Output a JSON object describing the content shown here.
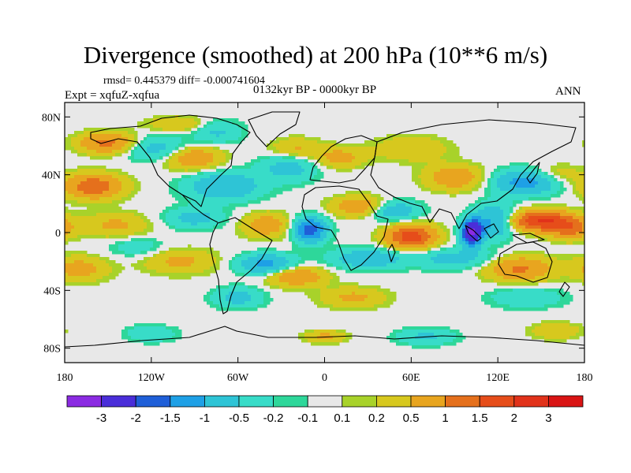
{
  "chart_data": {
    "type": "heatmap",
    "title": "Divergence (smoothed) at 200 hPa (10**6 m/s)",
    "stats_text": "rmsd= 0.445379 diff= -0.000741604",
    "experiment_text": "Expt = xqfuZ-xqfua",
    "period_text": "0132kyr BP - 0000kyr BP",
    "season_text": "ANN",
    "x_axis": {
      "range": [
        -180,
        180
      ],
      "ticks": [
        -180,
        -120,
        -60,
        0,
        60,
        120,
        180
      ],
      "tick_labels": [
        "180",
        "120W",
        "60W",
        "0",
        "60E",
        "120E",
        "180"
      ]
    },
    "y_axis": {
      "range": [
        -90,
        90
      ],
      "ticks": [
        80,
        40,
        0,
        -40,
        -80
      ],
      "tick_labels": [
        "80N",
        "40N",
        "0",
        "40S",
        "80S"
      ]
    },
    "colorbar": {
      "labels": [
        "-3",
        "-2",
        "-1.5",
        "-1",
        "-0.5",
        "-0.2",
        "-0.1",
        "0.1",
        "0.2",
        "0.5",
        "1",
        "1.5",
        "2",
        "3"
      ],
      "colors": [
        "#8b2be2",
        "#4a2ed9",
        "#1f5fd8",
        "#1ea0e6",
        "#2ec4d6",
        "#38dcc8",
        "#2ed79a",
        "#e8e8e8",
        "#a8d22a",
        "#d7c81e",
        "#e8a51f",
        "#e5701c",
        "#e64d1a",
        "#e1321a",
        "#d91414"
      ]
    },
    "anomalies": [
      {
        "lon": -150,
        "lat": 62,
        "v": 1.2,
        "sx": 14,
        "sy": 5
      },
      {
        "lon": -115,
        "lat": 58,
        "v": -0.8,
        "sx": 16,
        "sy": 6
      },
      {
        "lon": -92,
        "lat": 52,
        "v": 1.0,
        "sx": 14,
        "sy": 6
      },
      {
        "lon": -75,
        "lat": 70,
        "v": -0.6,
        "sx": 12,
        "sy": 6
      },
      {
        "lon": -160,
        "lat": 32,
        "v": 1.4,
        "sx": 14,
        "sy": 6
      },
      {
        "lon": -70,
        "lat": 32,
        "v": -1.0,
        "sx": 18,
        "sy": 7
      },
      {
        "lon": -25,
        "lat": 45,
        "v": -0.7,
        "sx": 14,
        "sy": 7
      },
      {
        "lon": -20,
        "lat": 58,
        "v": 0.6,
        "sx": 12,
        "sy": 5
      },
      {
        "lon": 10,
        "lat": 52,
        "v": 0.7,
        "sx": 12,
        "sy": 5
      },
      {
        "lon": 60,
        "lat": 58,
        "v": 0.5,
        "sx": 18,
        "sy": 6
      },
      {
        "lon": 90,
        "lat": 38,
        "v": 0.9,
        "sx": 14,
        "sy": 6
      },
      {
        "lon": 140,
        "lat": 35,
        "v": -1.3,
        "sx": 16,
        "sy": 6
      },
      {
        "lon": 160,
        "lat": 40,
        "v": 0.5,
        "sx": 12,
        "sy": 5
      },
      {
        "lon": 150,
        "lat": 8,
        "v": 2.0,
        "sx": 16,
        "sy": 5
      },
      {
        "lon": 170,
        "lat": 2,
        "v": 1.0,
        "sx": 10,
        "sy": 5
      },
      {
        "lon": 102,
        "lat": 0,
        "v": -3.2,
        "sx": 5,
        "sy": 6
      },
      {
        "lon": 118,
        "lat": 8,
        "v": -1.2,
        "sx": 10,
        "sy": 8
      },
      {
        "lon": 60,
        "lat": -3,
        "v": 1.8,
        "sx": 12,
        "sy": 6
      },
      {
        "lon": 48,
        "lat": 15,
        "v": -1.0,
        "sx": 12,
        "sy": 5
      },
      {
        "lon": 25,
        "lat": 18,
        "v": 0.9,
        "sx": 14,
        "sy": 5
      },
      {
        "lon": -10,
        "lat": 2,
        "v": -1.8,
        "sx": 8,
        "sy": 6
      },
      {
        "lon": -40,
        "lat": 5,
        "v": 0.8,
        "sx": 12,
        "sy": 6
      },
      {
        "lon": -90,
        "lat": 10,
        "v": -0.7,
        "sx": 14,
        "sy": 5
      },
      {
        "lon": -145,
        "lat": 5,
        "v": 0.6,
        "sx": 16,
        "sy": 6
      },
      {
        "lon": -130,
        "lat": -10,
        "v": -0.4,
        "sx": 14,
        "sy": 5
      },
      {
        "lon": -170,
        "lat": -25,
        "v": 0.7,
        "sx": 14,
        "sy": 6
      },
      {
        "lon": -100,
        "lat": -20,
        "v": 0.6,
        "sx": 18,
        "sy": 6
      },
      {
        "lon": -40,
        "lat": -22,
        "v": -1.2,
        "sx": 14,
        "sy": 5
      },
      {
        "lon": -20,
        "lat": -30,
        "v": 1.0,
        "sx": 14,
        "sy": 5
      },
      {
        "lon": 30,
        "lat": -18,
        "v": -0.9,
        "sx": 18,
        "sy": 5
      },
      {
        "lon": 90,
        "lat": -18,
        "v": -0.7,
        "sx": 20,
        "sy": 5
      },
      {
        "lon": 135,
        "lat": -25,
        "v": 1.1,
        "sx": 16,
        "sy": 6
      },
      {
        "lon": -60,
        "lat": -45,
        "v": -0.7,
        "sx": 12,
        "sy": 5
      },
      {
        "lon": 20,
        "lat": -45,
        "v": 0.6,
        "sx": 16,
        "sy": 5
      },
      {
        "lon": 140,
        "lat": -45,
        "v": -0.5,
        "sx": 18,
        "sy": 5
      },
      {
        "lon": 70,
        "lat": -72,
        "v": -0.6,
        "sx": 14,
        "sy": 4
      },
      {
        "lon": -120,
        "lat": -70,
        "v": -0.5,
        "sx": 12,
        "sy": 4
      },
      {
        "lon": 160,
        "lat": -68,
        "v": 0.5,
        "sx": 12,
        "sy": 4
      },
      {
        "lon": 0,
        "lat": -72,
        "v": 0.6,
        "sx": 10,
        "sy": 3
      },
      {
        "lon": -100,
        "lat": 75,
        "v": 0.5,
        "sx": 16,
        "sy": 4
      }
    ]
  }
}
